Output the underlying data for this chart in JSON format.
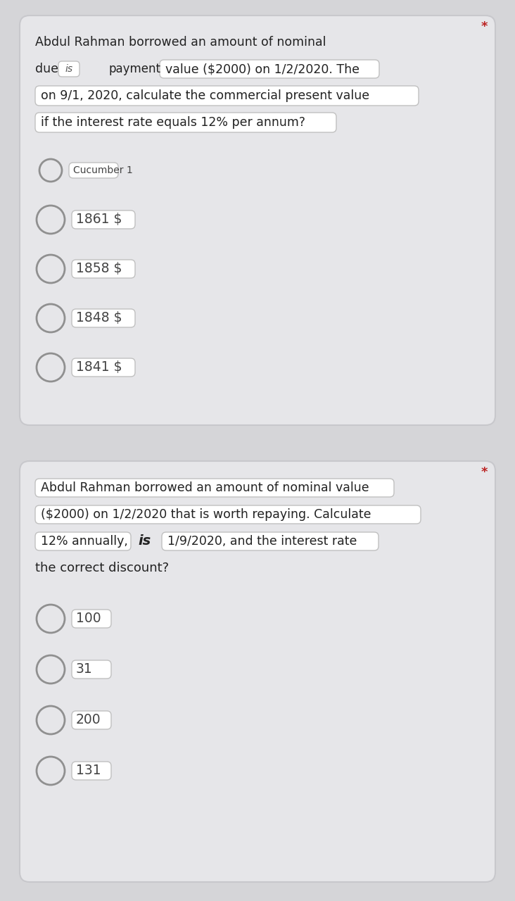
{
  "bg_color": "#d5d5d8",
  "card_color": "#e6e6e9",
  "card_border_color": "#c8c8cc",
  "text_color": "#222222",
  "highlight_bg": "#ffffff",
  "highlight_border": "#c0c0c0",
  "q1": {
    "line1": "Abdul Rahman borrowed an amount of nominal",
    "due_text": "due",
    "is_text": "is",
    "payment_text": "payment",
    "value_text": "value ($2000) on 1/2/2020. The",
    "line3": "on 9/1, 2020, calculate the commercial present value",
    "line4": "if the interest rate equals 12% per annum?",
    "star": "*",
    "options": [
      {
        "label": "Cucumber 1",
        "small": true
      },
      {
        "label": "1861 $",
        "small": false
      },
      {
        "label": "1858 $",
        "small": false
      },
      {
        "label": "1848 $",
        "small": false
      },
      {
        "label": "1841 $",
        "small": false
      }
    ]
  },
  "q2": {
    "line1": "Abdul Rahman borrowed an amount of nominal value",
    "line2": "($2000) on 1/2/2020 that is worth repaying. Calculate",
    "annually_text": "12% annually,",
    "is_text": "is",
    "date_text": "1/9/2020, and the interest rate",
    "line4": "the correct discount?",
    "star": "*",
    "options": [
      {
        "label": "100"
      },
      {
        "label": "31"
      },
      {
        "label": "200"
      },
      {
        "label": "131"
      }
    ]
  }
}
